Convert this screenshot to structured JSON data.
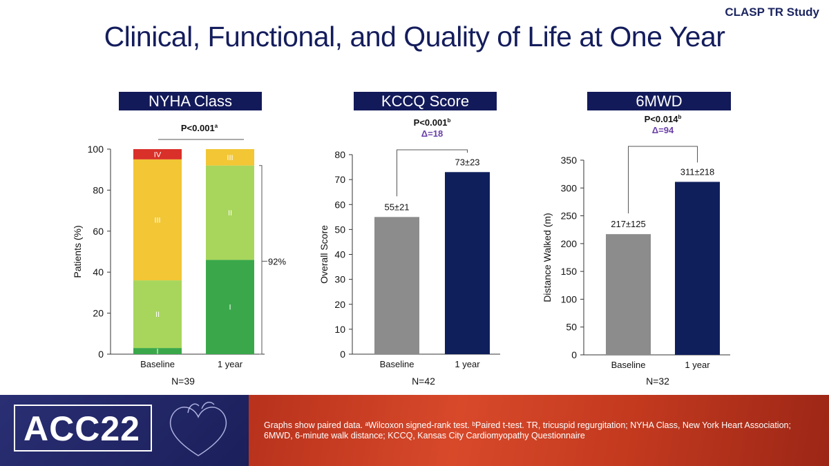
{
  "header": {
    "study": "CLASP TR Study",
    "title": "Clinical, Functional, and Quality of Life at One Year"
  },
  "footer": {
    "logo": "ACC22",
    "note": "Graphs show paired data. ᵃWilcoxon signed-rank test. ᵇPaired t-test. TR, tricuspid regurgitation; NYHA Class, New York Heart Association; 6MWD, 6-minute walk distance; KCCQ, Kansas City Cardiomyopathy Questionnaire"
  },
  "chart_data": [
    {
      "panel_title": "NYHA Class",
      "type": "bar",
      "stacked": true,
      "categories": [
        "Baseline",
        "1 year"
      ],
      "series": [
        {
          "name": "I",
          "values": [
            3,
            46
          ],
          "color": "#3aa84a"
        },
        {
          "name": "II",
          "values": [
            33,
            46
          ],
          "color": "#a8d65c"
        },
        {
          "name": "III",
          "values": [
            59,
            8
          ],
          "color": "#f2c635"
        },
        {
          "name": "IV",
          "values": [
            5,
            0
          ],
          "color": "#d9302a"
        }
      ],
      "ylabel": "Patients (%)",
      "ylim": [
        0,
        100
      ],
      "yticks": [
        0,
        20,
        40,
        60,
        80,
        100
      ],
      "pvalue": "P<0.001",
      "pvalue_sup": "a",
      "bracket_label": "92%",
      "n_label": "N=39"
    },
    {
      "panel_title": "KCCQ Score",
      "type": "bar",
      "categories": [
        "Baseline",
        "1 year"
      ],
      "values": [
        55,
        73
      ],
      "value_labels": [
        "55±21",
        "73±23"
      ],
      "colors": [
        "#8c8c8c",
        "#0f1f5c"
      ],
      "ylabel": "Overall Score",
      "ylim": [
        0,
        80
      ],
      "yticks": [
        0,
        10,
        20,
        30,
        40,
        50,
        60,
        70,
        80
      ],
      "pvalue": "P<0.001",
      "pvalue_sup": "b",
      "delta": "Δ=18",
      "n_label": "N=42"
    },
    {
      "panel_title": "6MWD",
      "type": "bar",
      "categories": [
        "Baseline",
        "1 year"
      ],
      "values": [
        217,
        311
      ],
      "value_labels": [
        "217±125",
        "311±218"
      ],
      "colors": [
        "#8c8c8c",
        "#0f1f5c"
      ],
      "ylabel": "Distance Walked (m)",
      "ylim": [
        0,
        350
      ],
      "yticks": [
        0,
        50,
        100,
        150,
        200,
        250,
        300,
        350
      ],
      "pvalue": "P<0.014",
      "pvalue_sup": "b",
      "delta": "Δ=94",
      "n_label": "N=32"
    }
  ]
}
